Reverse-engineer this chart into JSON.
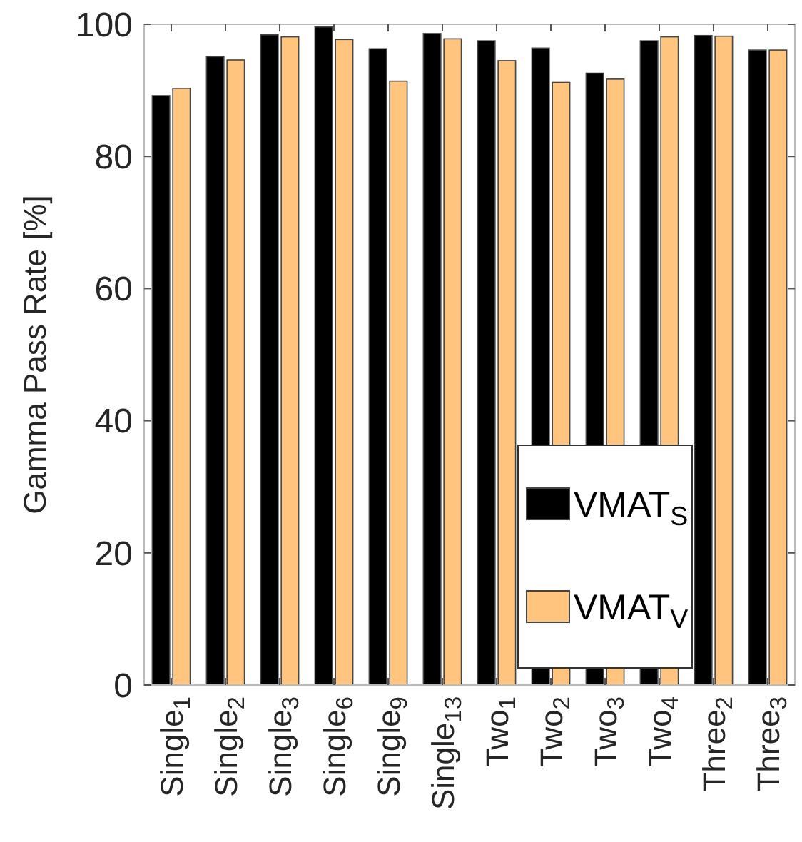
{
  "chart_data": {
    "type": "bar",
    "ylabel": "Gamma Pass Rate [%]",
    "categories": [
      "Single$_{1}$",
      "Single$_{2}$",
      "Single$_{3}$",
      "Single$_{6}$",
      "Single$_{9}$",
      "Single$_{13}$",
      "Two$_{1}$",
      "Two$_{2}$",
      "Two$_{3}$",
      "Two$_{4}$",
      "Three$_{2}$",
      "Three$_{3}$"
    ],
    "series": [
      {
        "name": "VMAT$_{S}$",
        "color": "#000000",
        "values": [
          89.2,
          95.1,
          98.4,
          99.6,
          96.3,
          98.6,
          97.5,
          96.4,
          92.6,
          97.5,
          98.3,
          96.1
        ]
      },
      {
        "name": "VMAT$_{V}$",
        "color": "#ffc57f",
        "values": [
          90.3,
          94.6,
          98.1,
          97.7,
          91.4,
          97.8,
          94.5,
          91.2,
          91.7,
          98.1,
          98.2,
          96.1
        ]
      }
    ],
    "ylim": [
      0,
      100
    ],
    "yticks": [
      0,
      20,
      40,
      60,
      80,
      100
    ],
    "legend": "bottom right",
    "grid": false
  }
}
